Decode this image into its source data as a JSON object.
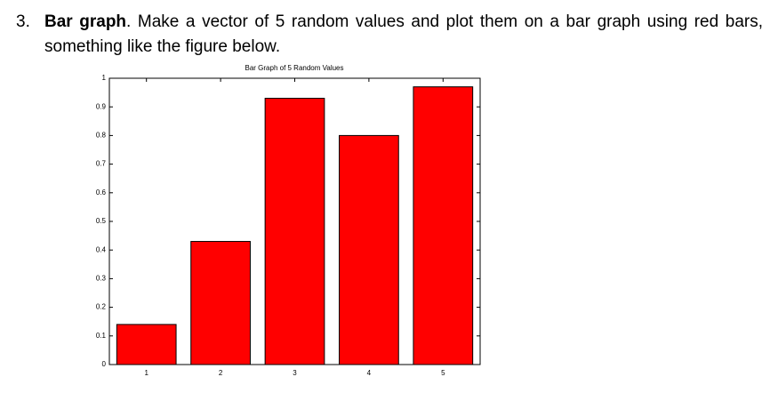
{
  "exercise": {
    "number": "3.",
    "heading": "Bar graph",
    "line1": ". Make a vector of 5 random values and plot them on a bar graph using red bars,",
    "line2": "something like the figure below."
  },
  "chart_data": {
    "type": "bar",
    "title": "Bar Graph of 5 Random Values",
    "categories": [
      "1",
      "2",
      "3",
      "4",
      "5"
    ],
    "values": [
      0.14,
      0.43,
      0.93,
      0.8,
      0.97
    ],
    "color": "#ff0000",
    "ylim": [
      0,
      1
    ],
    "yticks": [
      0,
      0.1,
      0.2,
      0.3,
      0.4,
      0.5,
      0.6,
      0.7,
      0.8,
      0.9,
      1
    ]
  }
}
